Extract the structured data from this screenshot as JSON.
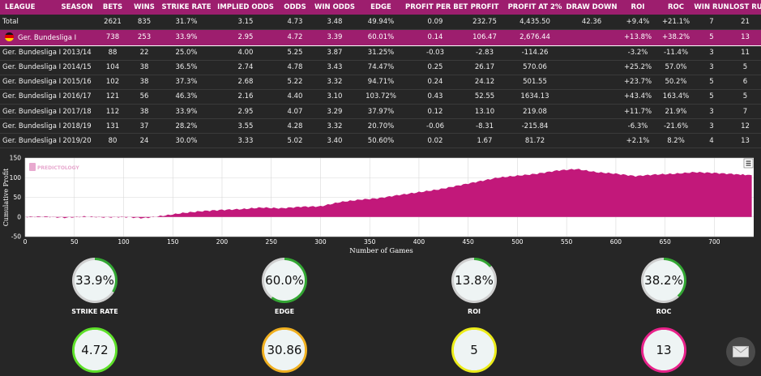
{
  "table": {
    "headers": [
      "LEAGUE",
      "SEASON",
      "BETS",
      "WINS",
      "STRIKE RATE",
      "IMPLIED ODDS",
      "ODDS",
      "WIN ODDS",
      "EDGE",
      "PROFIT PER BET",
      "PROFIT",
      "PROFIT AT 2%",
      "DRAW DOWN",
      "ROI",
      "ROC",
      "WIN RUN",
      "LOST RUN"
    ],
    "total": [
      "Total",
      "",
      "2621",
      "835",
      "31.7%",
      "3.15",
      "4.73",
      "3.48",
      "49.94%",
      "0.09",
      "232.75",
      "4,435.50",
      "42.36",
      "+9.4%",
      "+21.1%",
      "7",
      "21"
    ],
    "highlight": [
      "Ger. Bundesliga I",
      "",
      "738",
      "253",
      "33.9%",
      "2.95",
      "4.72",
      "3.39",
      "60.01%",
      "0.14",
      "106.47",
      "2,676.44",
      "",
      "+13.8%",
      "+38.2%",
      "5",
      "13"
    ],
    "seasons": [
      [
        "Ger. Bundesliga I",
        "2013/14",
        "88",
        "22",
        "25.0%",
        "4.00",
        "5.25",
        "3.87",
        "31.25%",
        "-0.03",
        "-2.83",
        "-114.26",
        "",
        "-3.2%",
        "-11.4%",
        "3",
        "11"
      ],
      [
        "Ger. Bundesliga I",
        "2014/15",
        "104",
        "38",
        "36.5%",
        "2.74",
        "4.78",
        "3.43",
        "74.47%",
        "0.25",
        "26.17",
        "570.06",
        "",
        "+25.2%",
        "57.0%",
        "3",
        "5"
      ],
      [
        "Ger. Bundesliga I",
        "2015/16",
        "102",
        "38",
        "37.3%",
        "2.68",
        "5.22",
        "3.32",
        "94.71%",
        "0.24",
        "24.12",
        "501.55",
        "",
        "+23.7%",
        "50.2%",
        "5",
        "6"
      ],
      [
        "Ger. Bundesliga I",
        "2016/17",
        "121",
        "56",
        "46.3%",
        "2.16",
        "4.40",
        "3.10",
        "103.72%",
        "0.43",
        "52.55",
        "1634.13",
        "",
        "+43.4%",
        "163.4%",
        "5",
        "5"
      ],
      [
        "Ger. Bundesliga I",
        "2017/18",
        "112",
        "38",
        "33.9%",
        "2.95",
        "4.07",
        "3.29",
        "37.97%",
        "0.12",
        "13.10",
        "219.08",
        "",
        "+11.7%",
        "21.9%",
        "3",
        "7"
      ],
      [
        "Ger. Bundesliga I",
        "2018/19",
        "131",
        "37",
        "28.2%",
        "3.55",
        "4.28",
        "3.32",
        "20.70%",
        "-0.06",
        "-8.31",
        "-215.84",
        "",
        "-6.3%",
        "-21.6%",
        "3",
        "12"
      ],
      [
        "Ger. Bundesliga I",
        "2019/20",
        "80",
        "24",
        "30.0%",
        "3.33",
        "5.02",
        "3.40",
        "50.60%",
        "0.02",
        "1.67",
        "81.72",
        "",
        "+2.1%",
        "8.2%",
        "4",
        "13"
      ]
    ]
  },
  "chart_data": {
    "type": "area",
    "xlabel": "Number of Games",
    "ylabel": "Cumulative Profit",
    "xlim": [
      0,
      740
    ],
    "ylim": [
      -50,
      150
    ],
    "xticks": [
      0,
      50,
      100,
      150,
      200,
      250,
      300,
      350,
      400,
      450,
      500,
      550,
      600,
      650,
      700
    ],
    "yticks": [
      -50,
      0,
      50,
      100,
      150
    ],
    "x": [
      0,
      20,
      40,
      60,
      80,
      100,
      120,
      140,
      160,
      180,
      200,
      220,
      240,
      260,
      280,
      300,
      320,
      340,
      360,
      380,
      400,
      420,
      440,
      460,
      480,
      500,
      520,
      540,
      560,
      580,
      600,
      620,
      640,
      660,
      680,
      700,
      720,
      738
    ],
    "values": [
      0,
      1,
      -2,
      1,
      -1,
      0,
      -3,
      3,
      10,
      15,
      18,
      20,
      24,
      22,
      26,
      27,
      38,
      44,
      48,
      56,
      63,
      70,
      80,
      90,
      100,
      105,
      110,
      118,
      122,
      114,
      110,
      104,
      108,
      110,
      114,
      112,
      109,
      106
    ],
    "color": "#c2187a",
    "grid": true,
    "watermark": "PREDICTOLOGY",
    "menu_icon": "hamburger-icon"
  },
  "gauges": [
    {
      "value": "33.9%",
      "label": "STRIKE RATE",
      "color": "#33a633",
      "fill": 0.339
    },
    {
      "value": "60.0%",
      "label": "EDGE",
      "color": "#33a633",
      "fill": 0.6
    },
    {
      "value": "13.8%",
      "label": "ROI",
      "color": "#33a633",
      "fill": 0.138
    },
    {
      "value": "38.2%",
      "label": "ROC",
      "color": "#33a633",
      "fill": 0.382
    },
    {
      "value": "4.72",
      "label": "",
      "color": "#5ee02a",
      "fill": 1
    },
    {
      "value": "30.86",
      "label": "",
      "color": "#f0b020",
      "fill": 1
    },
    {
      "value": "5",
      "label": "",
      "color": "#ecec1a",
      "fill": 1
    },
    {
      "value": "13",
      "label": "",
      "color": "#e8228a",
      "fill": 1
    }
  ],
  "mail_icon": "envelope-icon"
}
